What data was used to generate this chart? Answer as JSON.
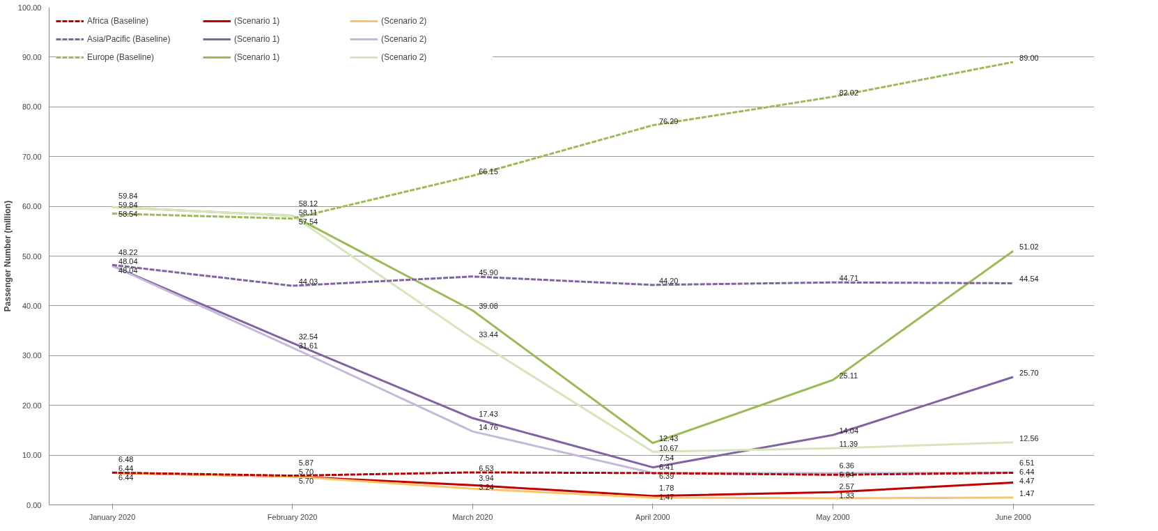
{
  "chart_data": {
    "type": "line",
    "ylabel": "Passenger Number (million)",
    "categories": [
      "January 2020",
      "February 2020",
      "March 2020",
      "April 2000",
      "May 2000",
      "June 2000"
    ],
    "ylim": [
      0,
      100
    ],
    "yticks": [
      {
        "value": 0,
        "label": "0.00"
      },
      {
        "value": 10,
        "label": "10.00"
      },
      {
        "value": 20,
        "label": "20.00"
      },
      {
        "value": 30,
        "label": "30.00"
      },
      {
        "value": 40,
        "label": "40.00"
      },
      {
        "value": 50,
        "label": "50.00"
      },
      {
        "value": 60,
        "label": "60.00"
      },
      {
        "value": 70,
        "label": "70.00"
      },
      {
        "value": 80,
        "label": "80.00"
      },
      {
        "value": 90,
        "label": "90.00"
      },
      {
        "value": 100,
        "label": "100.00"
      }
    ],
    "grid": "y",
    "legend": "top left",
    "marker": "none",
    "series": [
      {
        "name": "Africa (Baseline)",
        "color": "#c00000",
        "line_style": "dashed",
        "values": [
          6.48,
          5.87,
          6.53,
          6.39,
          6.04,
          6.44
        ],
        "value_labels": [
          "6.48",
          "5.87",
          "6.53",
          "6.39",
          "6.04",
          "6.44"
        ]
      },
      {
        "name": "(Scenario 1)",
        "color": "#c00000",
        "line_style": "solid",
        "values": [
          6.44,
          5.7,
          3.94,
          1.78,
          2.57,
          4.47
        ],
        "value_labels": [
          "6.44",
          "5.70",
          "3.94",
          "1.78",
          "2.57",
          "4.47"
        ]
      },
      {
        "name": "(Scenario 2)",
        "color": "#fac46a",
        "line_style": "solid",
        "values": [
          6.44,
          5.7,
          3.24,
          1.47,
          1.33,
          1.47
        ],
        "value_labels": [
          "6.44",
          "5.70",
          "3.24",
          "1.47",
          "1.33",
          "1.47"
        ]
      },
      {
        "name": "Asia/Pacific (Baseline)",
        "color": "#8064a2",
        "line_style": "dashed",
        "values": [
          48.22,
          44.03,
          45.9,
          44.2,
          44.71,
          44.54
        ],
        "value_labels": [
          "48.22",
          "44.03",
          "45.90",
          "44.20",
          "44.71",
          "44.54"
        ]
      },
      {
        "name": "(Scenario 1)",
        "color": "#8064a2",
        "line_style": "solid",
        "values": [
          48.04,
          32.54,
          17.43,
          7.54,
          14.04,
          25.7
        ],
        "value_labels": [
          "48.04",
          "32.54",
          "17.43",
          "7.54",
          "14.04",
          "25.70"
        ]
      },
      {
        "name": "(Scenario 2)",
        "color": "#c5b9da",
        "line_style": "solid",
        "values": [
          48.04,
          31.61,
          14.76,
          6.41,
          6.36,
          6.51
        ],
        "value_labels": [
          "48.04",
          "31.61",
          "14.76",
          "6.41",
          "6.36",
          "6.51"
        ]
      },
      {
        "name": "Europe (Baseline)",
        "color": "#9bbb59",
        "line_style": "dashed",
        "values": [
          58.54,
          57.54,
          66.15,
          76.29,
          82.02,
          89.0
        ],
        "value_labels": [
          "58.54",
          "57.54",
          "66.15",
          "76.29",
          "82.02",
          "89.00"
        ]
      },
      {
        "name": "(Scenario 1)",
        "color": "#9bbb59",
        "line_style": "solid",
        "values": [
          59.84,
          58.11,
          39.08,
          12.43,
          25.11,
          51.02
        ],
        "value_labels": [
          "59.84",
          "58.11",
          "39.08",
          "12.43",
          "25.11",
          "51.02"
        ]
      },
      {
        "name": "(Scenario 2)",
        "color": "#d7e4bd",
        "line_style": "solid",
        "values": [
          59.84,
          58.12,
          33.44,
          10.67,
          11.39,
          12.56
        ],
        "value_labels": [
          "59.84",
          "58.12",
          "33.44",
          "10.67",
          "11.39",
          "12.56"
        ]
      }
    ]
  }
}
